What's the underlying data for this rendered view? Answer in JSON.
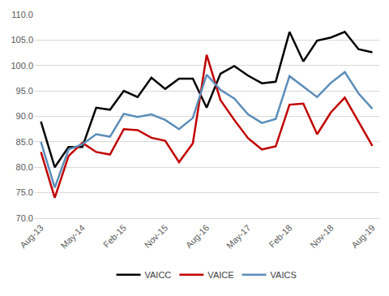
{
  "chart_data": {
    "type": "line",
    "categories": [
      "Aug-13",
      null,
      null,
      "May-14",
      null,
      null,
      "Feb-15",
      null,
      null,
      "Nov-15",
      null,
      null,
      "Aug-16",
      null,
      null,
      "May-17",
      null,
      null,
      "Feb-18",
      null,
      null,
      "Nov-18",
      null,
      null,
      "Aug-19"
    ],
    "series": [
      {
        "name": "VAICC",
        "color": "#000000",
        "values": [
          89,
          80,
          84,
          84,
          91.7,
          91.3,
          95,
          93.8,
          97.6,
          95.4,
          97.4,
          97.4,
          91.7,
          98.4,
          99.9,
          98,
          96.5,
          96.8,
          106.6,
          100.8,
          104.9,
          105.5,
          106.6,
          103.2,
          102.6
        ]
      },
      {
        "name": "VAICE",
        "color": "#C00000",
        "values": [
          83,
          74,
          82.2,
          84.8,
          83,
          82.5,
          87.5,
          87.3,
          85.8,
          85.2,
          81,
          84.7,
          102.1,
          93.2,
          89.3,
          85.7,
          83.5,
          84.1,
          92.3,
          92.5,
          86.5,
          90.8,
          93.7,
          89,
          84.2
        ]
      },
      {
        "name": "VAICS",
        "color": "#5B8DB8",
        "values": [
          85,
          76,
          83.5,
          84.5,
          86.5,
          86,
          90.5,
          89.9,
          90.4,
          89.3,
          87.5,
          89.7,
          98.2,
          95.2,
          93.5,
          90.4,
          88.7,
          89.5,
          97.9,
          95.9,
          93.8,
          96.6,
          98.7,
          94.5,
          91.5
        ]
      }
    ],
    "ylim": [
      70,
      110
    ],
    "yticks": [
      {
        "value": 70,
        "label": "70.0"
      },
      {
        "value": 75,
        "label": "75.0"
      },
      {
        "value": 80,
        "label": "80.0"
      },
      {
        "value": 85,
        "label": "85.0"
      },
      {
        "value": 90,
        "label": "90.0"
      },
      {
        "value": 95,
        "label": "95.0"
      },
      {
        "value": 100,
        "label": "100.0"
      },
      {
        "value": 105,
        "label": "105.0"
      },
      {
        "value": 110,
        "label": "110.0"
      }
    ],
    "grid": true,
    "legend": "bottom"
  }
}
